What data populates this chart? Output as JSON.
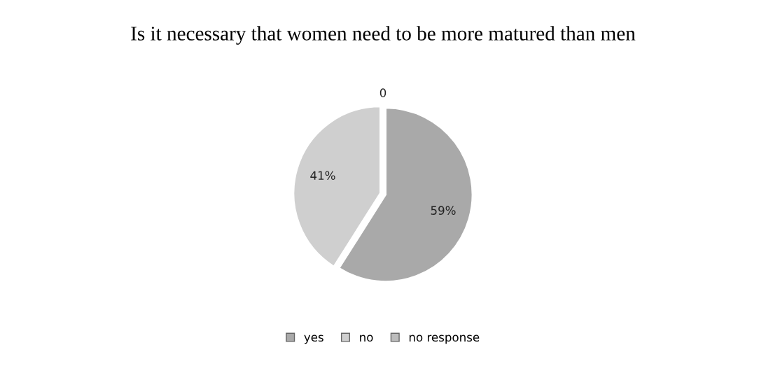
{
  "chart_data": {
    "type": "pie",
    "title": "Is it necessary that women need to be more matured than men",
    "categories": [
      "yes",
      "no",
      "no response"
    ],
    "values": [
      59,
      41,
      0
    ],
    "colors": [
      "#a9a9a9",
      "#cfcfcf",
      "#bcbcbc"
    ],
    "value_labels": [
      "59%",
      "41%",
      "0"
    ],
    "legend": "bottom"
  }
}
